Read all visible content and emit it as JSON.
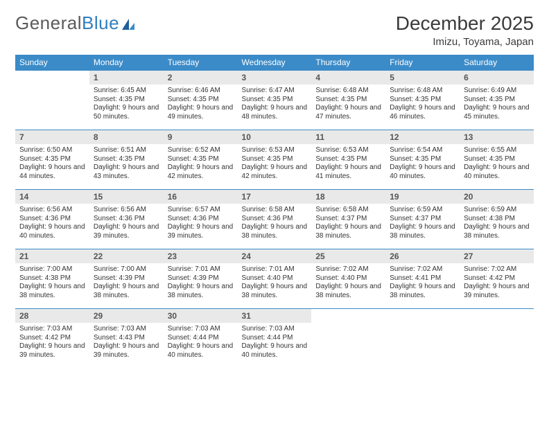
{
  "brand": {
    "part1": "General",
    "part2": "Blue"
  },
  "title": "December 2025",
  "location": "Imizu, Toyama, Japan",
  "colors": {
    "header_bg": "#3b8bc8",
    "header_text": "#ffffff",
    "daynum_bg": "#e9e9e9",
    "border": "#3b8bc8",
    "body_text": "#333333",
    "logo_gray": "#5a5a5a",
    "logo_blue": "#2f7fbf",
    "page_bg": "#ffffff"
  },
  "daysOfWeek": [
    "Sunday",
    "Monday",
    "Tuesday",
    "Wednesday",
    "Thursday",
    "Friday",
    "Saturday"
  ],
  "firstDayOffset": 1,
  "days": [
    {
      "n": 1,
      "sr": "6:45 AM",
      "ss": "4:35 PM",
      "dl": "9 hours and 50 minutes."
    },
    {
      "n": 2,
      "sr": "6:46 AM",
      "ss": "4:35 PM",
      "dl": "9 hours and 49 minutes."
    },
    {
      "n": 3,
      "sr": "6:47 AM",
      "ss": "4:35 PM",
      "dl": "9 hours and 48 minutes."
    },
    {
      "n": 4,
      "sr": "6:48 AM",
      "ss": "4:35 PM",
      "dl": "9 hours and 47 minutes."
    },
    {
      "n": 5,
      "sr": "6:48 AM",
      "ss": "4:35 PM",
      "dl": "9 hours and 46 minutes."
    },
    {
      "n": 6,
      "sr": "6:49 AM",
      "ss": "4:35 PM",
      "dl": "9 hours and 45 minutes."
    },
    {
      "n": 7,
      "sr": "6:50 AM",
      "ss": "4:35 PM",
      "dl": "9 hours and 44 minutes."
    },
    {
      "n": 8,
      "sr": "6:51 AM",
      "ss": "4:35 PM",
      "dl": "9 hours and 43 minutes."
    },
    {
      "n": 9,
      "sr": "6:52 AM",
      "ss": "4:35 PM",
      "dl": "9 hours and 42 minutes."
    },
    {
      "n": 10,
      "sr": "6:53 AM",
      "ss": "4:35 PM",
      "dl": "9 hours and 42 minutes."
    },
    {
      "n": 11,
      "sr": "6:53 AM",
      "ss": "4:35 PM",
      "dl": "9 hours and 41 minutes."
    },
    {
      "n": 12,
      "sr": "6:54 AM",
      "ss": "4:35 PM",
      "dl": "9 hours and 40 minutes."
    },
    {
      "n": 13,
      "sr": "6:55 AM",
      "ss": "4:35 PM",
      "dl": "9 hours and 40 minutes."
    },
    {
      "n": 14,
      "sr": "6:56 AM",
      "ss": "4:36 PM",
      "dl": "9 hours and 40 minutes."
    },
    {
      "n": 15,
      "sr": "6:56 AM",
      "ss": "4:36 PM",
      "dl": "9 hours and 39 minutes."
    },
    {
      "n": 16,
      "sr": "6:57 AM",
      "ss": "4:36 PM",
      "dl": "9 hours and 39 minutes."
    },
    {
      "n": 17,
      "sr": "6:58 AM",
      "ss": "4:36 PM",
      "dl": "9 hours and 38 minutes."
    },
    {
      "n": 18,
      "sr": "6:58 AM",
      "ss": "4:37 PM",
      "dl": "9 hours and 38 minutes."
    },
    {
      "n": 19,
      "sr": "6:59 AM",
      "ss": "4:37 PM",
      "dl": "9 hours and 38 minutes."
    },
    {
      "n": 20,
      "sr": "6:59 AM",
      "ss": "4:38 PM",
      "dl": "9 hours and 38 minutes."
    },
    {
      "n": 21,
      "sr": "7:00 AM",
      "ss": "4:38 PM",
      "dl": "9 hours and 38 minutes."
    },
    {
      "n": 22,
      "sr": "7:00 AM",
      "ss": "4:39 PM",
      "dl": "9 hours and 38 minutes."
    },
    {
      "n": 23,
      "sr": "7:01 AM",
      "ss": "4:39 PM",
      "dl": "9 hours and 38 minutes."
    },
    {
      "n": 24,
      "sr": "7:01 AM",
      "ss": "4:40 PM",
      "dl": "9 hours and 38 minutes."
    },
    {
      "n": 25,
      "sr": "7:02 AM",
      "ss": "4:40 PM",
      "dl": "9 hours and 38 minutes."
    },
    {
      "n": 26,
      "sr": "7:02 AM",
      "ss": "4:41 PM",
      "dl": "9 hours and 38 minutes."
    },
    {
      "n": 27,
      "sr": "7:02 AM",
      "ss": "4:42 PM",
      "dl": "9 hours and 39 minutes."
    },
    {
      "n": 28,
      "sr": "7:03 AM",
      "ss": "4:42 PM",
      "dl": "9 hours and 39 minutes."
    },
    {
      "n": 29,
      "sr": "7:03 AM",
      "ss": "4:43 PM",
      "dl": "9 hours and 39 minutes."
    },
    {
      "n": 30,
      "sr": "7:03 AM",
      "ss": "4:44 PM",
      "dl": "9 hours and 40 minutes."
    },
    {
      "n": 31,
      "sr": "7:03 AM",
      "ss": "4:44 PM",
      "dl": "9 hours and 40 minutes."
    }
  ],
  "labels": {
    "sunrise": "Sunrise:",
    "sunset": "Sunset:",
    "daylight": "Daylight:"
  }
}
